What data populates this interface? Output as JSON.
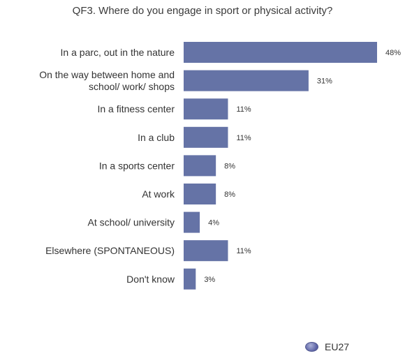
{
  "chart_data": {
    "type": "bar",
    "orientation": "horizontal",
    "title": "QF3. Where do you engage in sport or physical activity?",
    "categories": [
      [
        "In a parc, out in the nature"
      ],
      [
        "On the way between home and",
        "school/ work/ shops"
      ],
      [
        "In a fitness center"
      ],
      [
        "In a club"
      ],
      [
        "In a sports center"
      ],
      [
        "At work"
      ],
      [
        "At school/ university"
      ],
      [
        "Elsewhere (SPONTANEOUS)"
      ],
      [
        "Don't know"
      ]
    ],
    "series": [
      {
        "name": "EU27",
        "values": [
          48,
          31,
          11,
          11,
          8,
          8,
          4,
          11,
          3
        ],
        "labels": [
          "48%",
          "31%",
          "11%",
          "11%",
          "8%",
          "8%",
          "4%",
          "11%",
          "3%"
        ]
      }
    ],
    "xlim": [
      0,
      48
    ],
    "grid": false,
    "legend_position": "bottom-right",
    "bar_color": "#6573a6"
  }
}
